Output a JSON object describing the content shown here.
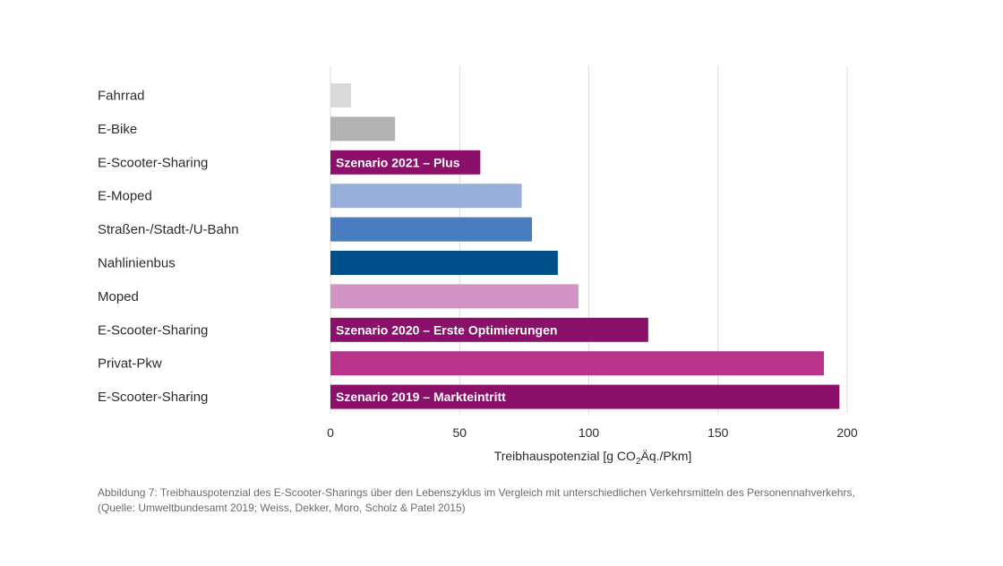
{
  "chart_data": {
    "type": "bar",
    "orientation": "horizontal",
    "categories": [
      "Fahrrad",
      "E-Bike",
      "E-Scooter-Sharing",
      "E-Moped",
      "Straßen-/Stadt-/U-Bahn",
      "Nahlinienbus",
      "Moped",
      "E-Scooter-Sharing",
      "Privat-Pkw",
      "E-Scooter-Sharing"
    ],
    "values": [
      8,
      25,
      58,
      74,
      78,
      88,
      96,
      123,
      191,
      197
    ],
    "bar_labels": [
      "",
      "",
      "Szenario 2021 – Plus",
      "",
      "",
      "",
      "",
      "Szenario 2020 – Erste Optimierungen",
      "",
      "Szenario 2019 – Markteintritt"
    ],
    "colors": [
      "#d9dadb",
      "#b1b3b5",
      "#8a1069",
      "#98afdb",
      "#4a7cc1",
      "#004e8a",
      "#d194c4",
      "#8a1069",
      "#b8348b",
      "#8a1069"
    ],
    "xlim": [
      0,
      200
    ],
    "xticks": [
      0,
      50,
      100,
      150,
      200
    ],
    "xlabel_parts": {
      "pre": "Treibhauspotenzial [g CO",
      "sub": "2",
      "post": "Äq./Pkm]"
    },
    "grid": true
  },
  "caption": {
    "line1": "Abbildung 7: Treibhauspotenzial des E-Scooter-Sharings über den Lebenszyklus im Vergleich mit unterschiedlichen Verkehrsmitteln des Personennahverkehrs,",
    "line2": "(Quelle: Umweltbundesamt 2019; Weiss, Dekker, Moro, Scholz & Patel 2015)"
  }
}
